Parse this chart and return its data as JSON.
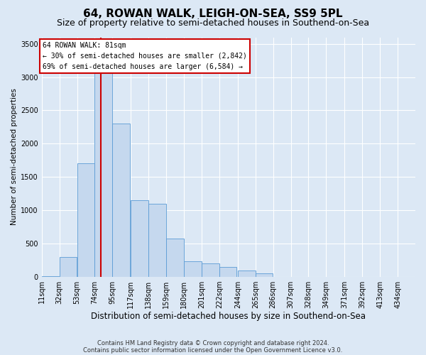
{
  "title": "64, ROWAN WALK, LEIGH-ON-SEA, SS9 5PL",
  "subtitle": "Size of property relative to semi-detached houses in Southend-on-Sea",
  "xlabel": "Distribution of semi-detached houses by size in Southend-on-Sea",
  "ylabel": "Number of semi-detached properties",
  "footer_line1": "Contains HM Land Registry data © Crown copyright and database right 2024.",
  "footer_line2": "Contains public sector information licensed under the Open Government Licence v3.0.",
  "annotation_title": "64 ROWAN WALK: 81sqm",
  "annotation_line1": "← 30% of semi-detached houses are smaller (2,842)",
  "annotation_line2": "69% of semi-detached houses are larger (6,584) →",
  "property_sqm": 81,
  "bar_labels": [
    "11sqm",
    "32sqm",
    "53sqm",
    "74sqm",
    "95sqm",
    "117sqm",
    "138sqm",
    "159sqm",
    "180sqm",
    "201sqm",
    "222sqm",
    "244sqm",
    "265sqm",
    "286sqm",
    "307sqm",
    "328sqm",
    "349sqm",
    "371sqm",
    "392sqm",
    "413sqm",
    "434sqm"
  ],
  "bar_values": [
    10,
    290,
    1700,
    3350,
    2300,
    1150,
    1100,
    570,
    230,
    200,
    150,
    90,
    50,
    0,
    0,
    0,
    0,
    0,
    0,
    0,
    0
  ],
  "bin_starts": [
    11,
    32,
    53,
    74,
    95,
    117,
    138,
    159,
    180,
    201,
    222,
    244,
    265,
    286,
    307,
    328,
    349,
    371,
    392,
    413,
    434
  ],
  "bin_width": 21,
  "bar_color": "#c5d8ee",
  "bar_edge_color": "#5b9bd5",
  "vline_color": "#cc0000",
  "annotation_facecolor": "#ffffff",
  "annotation_edgecolor": "#cc0000",
  "ylim": [
    0,
    3600
  ],
  "yticks": [
    0,
    500,
    1000,
    1500,
    2000,
    2500,
    3000,
    3500
  ],
  "background_color": "#dce8f5",
  "grid_color": "#ffffff",
  "title_fontsize": 11,
  "subtitle_fontsize": 9,
  "ylabel_fontsize": 7.5,
  "xlabel_fontsize": 8.5,
  "tick_fontsize": 7,
  "annotation_fontsize": 7,
  "footer_fontsize": 6
}
